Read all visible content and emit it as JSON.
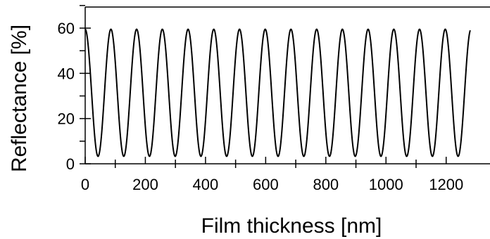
{
  "chart_data": {
    "type": "line",
    "title": "",
    "xlabel": "Film thickness [nm]",
    "ylabel": "Reflectance [%]",
    "xlim": [
      0,
      1280
    ],
    "ylim": [
      0,
      70
    ],
    "x_ticks": [
      0,
      200,
      400,
      600,
      800,
      1000,
      1200
    ],
    "x_tick_labels": [
      "0",
      "200",
      "400",
      "600",
      "800",
      "1000",
      "1200"
    ],
    "y_ticks": [
      0,
      20,
      40,
      60
    ],
    "y_tick_labels": [
      "0",
      "20",
      "40",
      "60"
    ],
    "grid": false,
    "legend": "none",
    "series": [
      {
        "color": "#000000",
        "period_nm": 85.5,
        "max_reflectance": 59.5,
        "min_reflectance": 3.3,
        "first_maximum_at_nm": 0
      }
    ]
  }
}
